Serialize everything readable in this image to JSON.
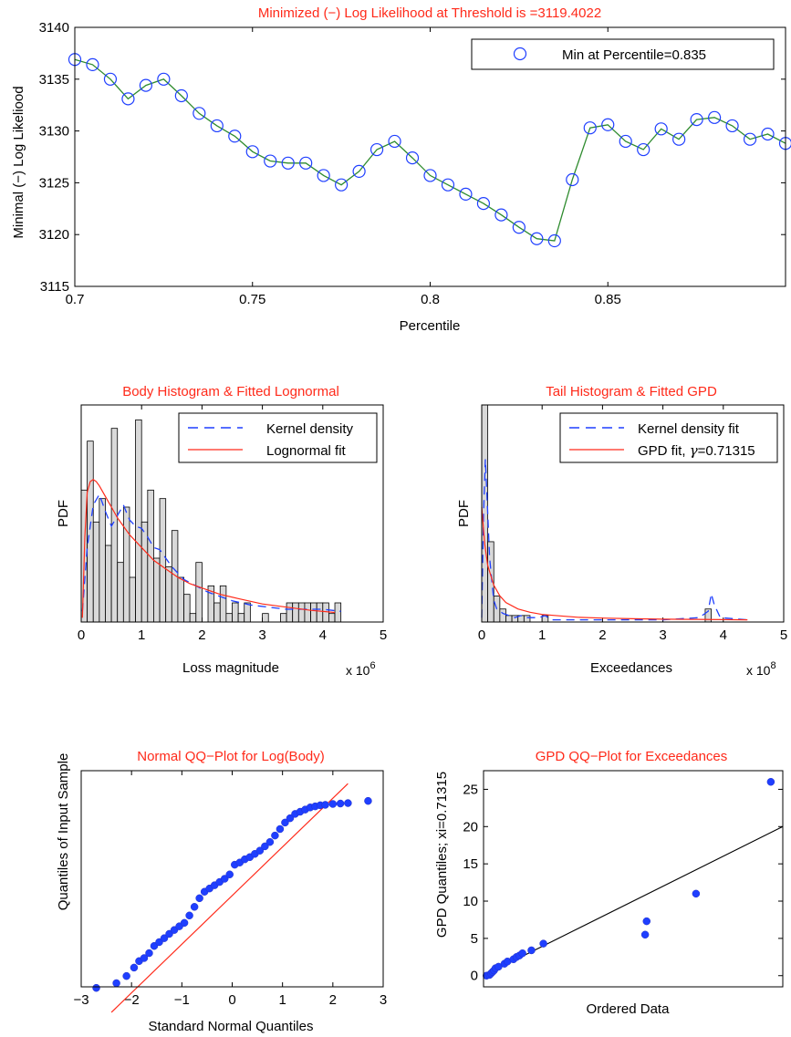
{
  "chart_data": [
    {
      "type": "line",
      "title": "Minimized (−) Log Likelihood at Threshold is =3119.4022",
      "xlabel": "Percentile",
      "ylabel": "Minimal (−) Log Likeliood",
      "xlim": [
        0.7,
        0.9
      ],
      "ylim": [
        3115,
        3140
      ],
      "xticks": [
        "0.7",
        "0.75",
        "0.8",
        "0.85"
      ],
      "yticks": [
        "3115",
        "3120",
        "3125",
        "3130",
        "3135",
        "3140"
      ],
      "legend": {
        "position": "top-right",
        "entries": [
          "Min at Percentile=0.835"
        ]
      },
      "line_color": "#2e8b2e",
      "marker_color": "#1f3fff",
      "title_color": "#ff2a1a",
      "x": [
        0.7,
        0.705,
        0.71,
        0.715,
        0.72,
        0.725,
        0.73,
        0.735,
        0.74,
        0.745,
        0.75,
        0.755,
        0.76,
        0.765,
        0.77,
        0.775,
        0.78,
        0.785,
        0.79,
        0.795,
        0.8,
        0.805,
        0.81,
        0.815,
        0.82,
        0.825,
        0.83,
        0.835,
        0.84,
        0.845,
        0.85,
        0.855,
        0.86,
        0.865,
        0.87,
        0.875,
        0.88,
        0.885,
        0.89,
        0.895,
        0.9
      ],
      "y": [
        3136.9,
        3136.4,
        3135.0,
        3133.1,
        3134.4,
        3135.0,
        3133.4,
        3131.7,
        3130.5,
        3129.5,
        3128.0,
        3127.1,
        3126.9,
        3126.9,
        3125.7,
        3124.8,
        3126.1,
        3128.2,
        3129.0,
        3127.4,
        3125.7,
        3124.8,
        3123.9,
        3123.0,
        3121.9,
        3120.7,
        3119.6,
        3119.4,
        3125.3,
        3130.3,
        3130.6,
        3129.0,
        3128.2,
        3130.2,
        3129.2,
        3131.1,
        3131.3,
        3130.5,
        3129.2,
        3129.7,
        3128.8
      ]
    },
    {
      "type": "bar",
      "title": "Body Histogram & Fitted Lognormal",
      "xlabel": "Loss magnitude",
      "ylabel": "PDF",
      "xlim": [
        0,
        5
      ],
      "xticks": [
        "0",
        "1",
        "2",
        "3",
        "4",
        "5"
      ],
      "x_exponent_label": "x 10",
      "x_exponent": "6",
      "legend": {
        "position": "top-right",
        "entries": [
          "Kernel density",
          "Lognormal fit"
        ]
      },
      "bin_width": 0.1,
      "bins": [
        0.05,
        0.15,
        0.25,
        0.35,
        0.45,
        0.55,
        0.65,
        0.75,
        0.85,
        0.95,
        1.05,
        1.15,
        1.25,
        1.35,
        1.45,
        1.55,
        1.65,
        1.75,
        1.85,
        1.95,
        2.05,
        2.15,
        2.25,
        2.35,
        2.45,
        2.55,
        2.65,
        2.75,
        2.85,
        2.95,
        3.05,
        3.15,
        3.25,
        3.35,
        3.45,
        3.55,
        3.65,
        3.75,
        3.85,
        3.95,
        4.05,
        4.15,
        4.25
      ],
      "values": [
        0.62,
        0.85,
        0.47,
        0.58,
        0.36,
        0.91,
        0.28,
        0.54,
        0.21,
        0.95,
        0.47,
        0.62,
        0.3,
        0.58,
        0.26,
        0.43,
        0.21,
        0.13,
        0.04,
        0.28,
        0.0,
        0.17,
        0.09,
        0.17,
        0.04,
        0.09,
        0.04,
        0.09,
        0.0,
        0.0,
        0.04,
        0.0,
        0.0,
        0.04,
        0.09,
        0.09,
        0.09,
        0.09,
        0.09,
        0.09,
        0.09,
        0.04,
        0.09
      ],
      "kernel_density": {
        "x": [
          0.02,
          0.1,
          0.2,
          0.3,
          0.4,
          0.5,
          0.6,
          0.7,
          0.8,
          0.9,
          1.0,
          1.1,
          1.2,
          1.3,
          1.4,
          1.5,
          1.7,
          1.9,
          2.1,
          2.3,
          2.5,
          2.8,
          3.1,
          3.4,
          3.7,
          4.0,
          4.3
        ],
        "y": [
          0.05,
          0.35,
          0.55,
          0.6,
          0.52,
          0.45,
          0.5,
          0.55,
          0.48,
          0.45,
          0.44,
          0.4,
          0.35,
          0.34,
          0.3,
          0.26,
          0.2,
          0.17,
          0.14,
          0.12,
          0.1,
          0.08,
          0.07,
          0.06,
          0.06,
          0.06,
          0.05
        ]
      },
      "lognormal_fit": {
        "x": [
          0.02,
          0.06,
          0.1,
          0.15,
          0.2,
          0.25,
          0.3,
          0.4,
          0.5,
          0.6,
          0.7,
          0.8,
          0.9,
          1.0,
          1.2,
          1.4,
          1.6,
          1.8,
          2.0,
          2.3,
          2.6,
          3.0,
          3.4,
          3.8,
          4.2
        ],
        "y": [
          0.02,
          0.4,
          0.61,
          0.66,
          0.67,
          0.66,
          0.64,
          0.59,
          0.54,
          0.49,
          0.45,
          0.41,
          0.38,
          0.35,
          0.29,
          0.25,
          0.21,
          0.18,
          0.16,
          0.13,
          0.11,
          0.085,
          0.07,
          0.055,
          0.045
        ]
      }
    },
    {
      "type": "bar",
      "title": "Tail Histogram & Fitted GPD",
      "xlabel": "Exceedances",
      "ylabel": "PDF",
      "xlim": [
        0,
        5
      ],
      "xticks": [
        "0",
        "1",
        "2",
        "3",
        "4",
        "5"
      ],
      "x_exponent_label": "x 10",
      "x_exponent": "8",
      "legend": {
        "position": "top-right",
        "entries": [
          "Kernel density fit",
          "GPD fit, ",
          "γ",
          "=0.71315"
        ]
      },
      "bin_width": 0.1,
      "bins": [
        0.05,
        0.15,
        0.25,
        0.35,
        0.45,
        0.55,
        0.65,
        0.75,
        0.85,
        0.95,
        1.05,
        3.75
      ],
      "values": [
        1.0,
        0.37,
        0.12,
        0.06,
        0.03,
        0.03,
        0.03,
        0.03,
        0.0,
        0.0,
        0.03,
        0.06
      ],
      "kernel_density": {
        "x": [
          0.0,
          0.03,
          0.06,
          0.1,
          0.13,
          0.17,
          0.2,
          0.25,
          0.3,
          0.35,
          0.45,
          0.55,
          0.65,
          0.75,
          0.85,
          0.95,
          1.05,
          1.15,
          1.5,
          2.0,
          2.5,
          3.0,
          3.6,
          3.75,
          3.8,
          3.85,
          3.95,
          4.4
        ],
        "y": [
          0.02,
          0.5,
          0.75,
          0.5,
          0.3,
          0.18,
          0.1,
          0.06,
          0.05,
          0.04,
          0.03,
          0.02,
          0.03,
          0.02,
          0.02,
          0.02,
          0.03,
          0.01,
          0.01,
          0.01,
          0.01,
          0.01,
          0.02,
          0.05,
          0.13,
          0.08,
          0.02,
          0.01
        ]
      },
      "gpd_fit": {
        "x": [
          0.0,
          0.05,
          0.1,
          0.2,
          0.3,
          0.4,
          0.6,
          0.8,
          1.0,
          1.3,
          1.6,
          2.0,
          2.5,
          3.0,
          3.5,
          4.0,
          4.4
        ],
        "y": [
          0.53,
          0.36,
          0.26,
          0.17,
          0.12,
          0.09,
          0.06,
          0.045,
          0.035,
          0.028,
          0.022,
          0.018,
          0.015,
          0.013,
          0.012,
          0.011,
          0.01
        ]
      }
    },
    {
      "type": "scatter",
      "title": "Normal QQ−Plot for Log(Body)",
      "xlabel": "Standard Normal Quantiles",
      "ylabel": "Quantiles of Input Sample",
      "xlim": [
        -3,
        3
      ],
      "xticks": [
        "−3",
        "−2",
        "−1",
        "0",
        "1",
        "2",
        "3"
      ],
      "reference_line": {
        "x": [
          -2.4,
          2.3
        ],
        "y": [
          -0.118,
          0.94
        ]
      },
      "points": {
        "x": [
          -2.7,
          -2.3,
          -2.1,
          -1.95,
          -1.85,
          -1.75,
          -1.65,
          -1.55,
          -1.45,
          -1.35,
          -1.25,
          -1.15,
          -1.05,
          -0.95,
          -0.85,
          -0.75,
          -0.65,
          -0.55,
          -0.45,
          -0.35,
          -0.25,
          -0.15,
          -0.05,
          0.05,
          0.15,
          0.25,
          0.35,
          0.45,
          0.55,
          0.65,
          0.75,
          0.85,
          0.95,
          1.05,
          1.15,
          1.25,
          1.35,
          1.45,
          1.55,
          1.65,
          1.75,
          1.85,
          2.0,
          2.15,
          2.3,
          2.7
        ],
        "y": [
          -0.005,
          0.017,
          0.05,
          0.089,
          0.119,
          0.133,
          0.156,
          0.189,
          0.207,
          0.225,
          0.245,
          0.263,
          0.28,
          0.296,
          0.33,
          0.37,
          0.41,
          0.44,
          0.455,
          0.47,
          0.485,
          0.5,
          0.52,
          0.565,
          0.575,
          0.59,
          0.6,
          0.615,
          0.63,
          0.65,
          0.67,
          0.7,
          0.73,
          0.76,
          0.78,
          0.8,
          0.81,
          0.82,
          0.83,
          0.835,
          0.84,
          0.842,
          0.846,
          0.848,
          0.85,
          0.86
        ]
      }
    },
    {
      "type": "scatter",
      "title": "GPD QQ−Plot for Exceedances",
      "xlabel": "Ordered Data",
      "ylabel": "GPD Quantiles; xi=0.71315",
      "xlim": [
        0,
        1
      ],
      "ylim": [
        -1.5,
        27.5
      ],
      "yticks": [
        "0",
        "5",
        "10",
        "15",
        "20",
        "25"
      ],
      "reference_line": {
        "x": [
          0.0,
          1.0
        ],
        "y": [
          0.0,
          20.0
        ]
      },
      "points": {
        "x": [
          0.01,
          0.02,
          0.025,
          0.03,
          0.035,
          0.04,
          0.05,
          0.07,
          0.08,
          0.1,
          0.11,
          0.12,
          0.13,
          0.16,
          0.2,
          0.54,
          0.545,
          0.71,
          0.96
        ],
        "y": [
          0.0,
          0.1,
          0.3,
          0.5,
          0.7,
          1.0,
          1.2,
          1.6,
          1.9,
          2.2,
          2.5,
          2.7,
          3.0,
          3.4,
          4.3,
          5.5,
          7.3,
          11.0,
          26.0
        ]
      }
    }
  ]
}
